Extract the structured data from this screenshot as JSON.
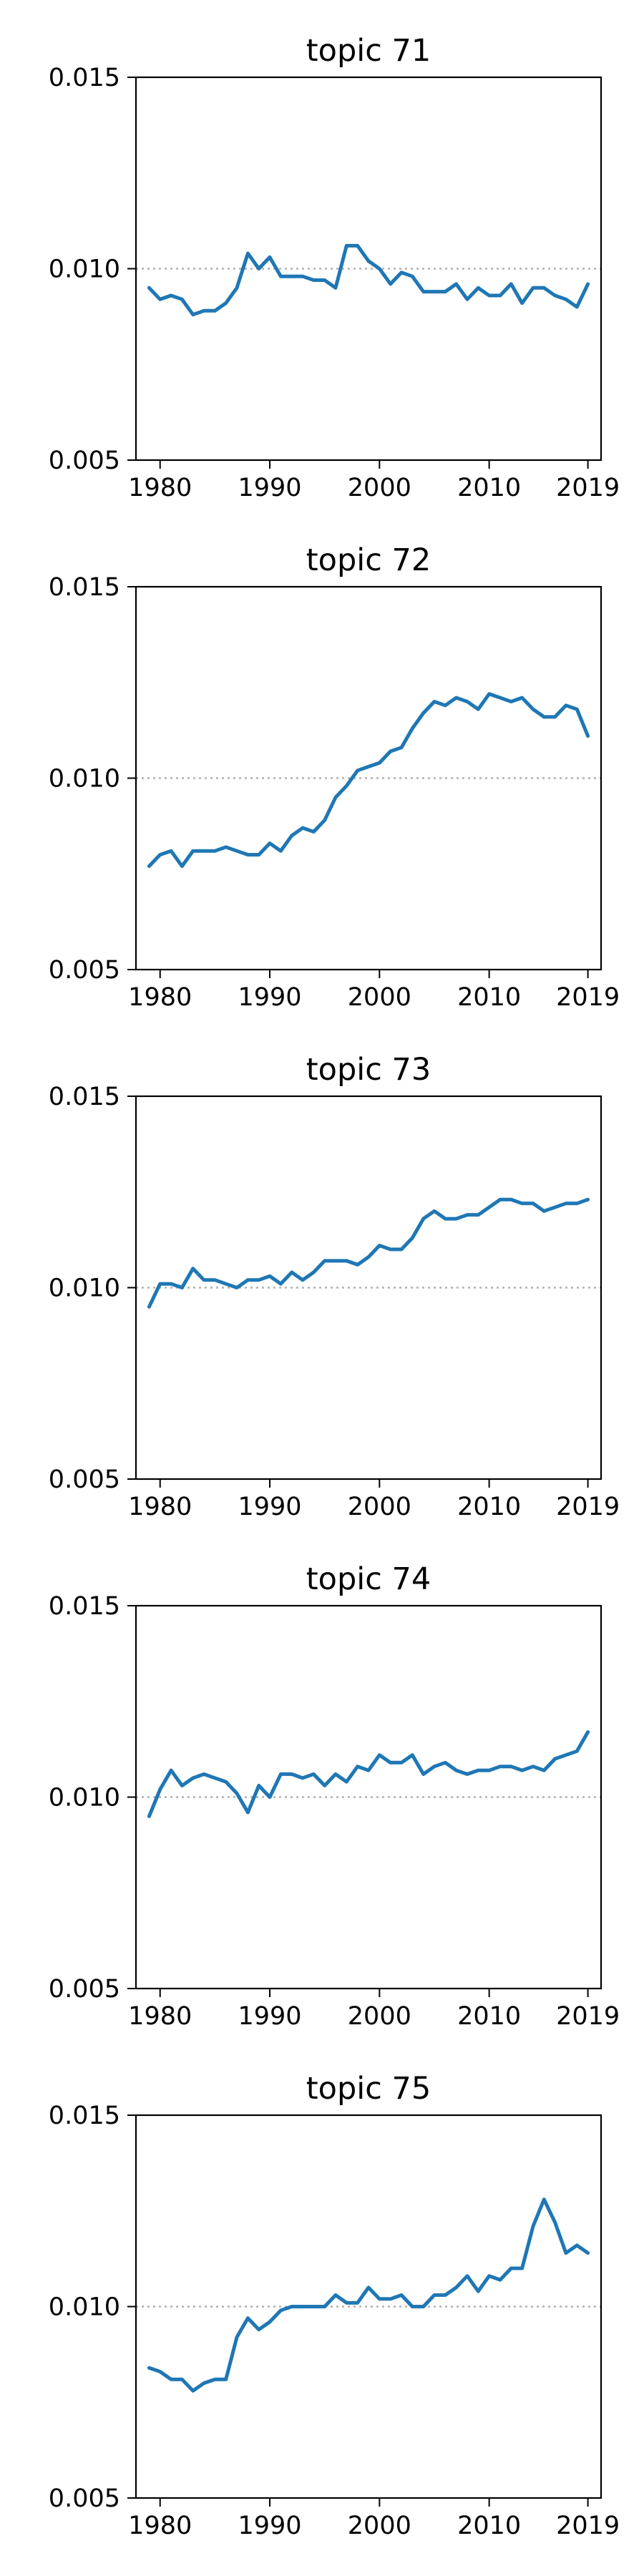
{
  "colors": {
    "line": "#1f77b4",
    "ref_line": "#b0b0b0",
    "axis": "#000000"
  },
  "chart_data": [
    {
      "type": "line",
      "title": "topic 71",
      "xlabel": "",
      "ylabel": "",
      "xlim": [
        1977.8,
        1820.2
      ],
      "ylim": [
        0.005,
        0.015
      ],
      "xticks": [
        1980,
        1990,
        2000,
        2010,
        2019
      ],
      "xtick_labels": [
        "1980",
        "1990",
        "2000",
        "2010",
        "2019"
      ],
      "yticks": [
        0.005,
        0.01,
        0.015
      ],
      "ytick_labels": [
        "0.005",
        "0.010",
        "0.015"
      ],
      "reference_line": 0.01,
      "grid": false,
      "series": [
        {
          "x": [
            1979,
            1980,
            1981,
            1982,
            1983,
            1984,
            1985,
            1986,
            1987,
            1988,
            1989,
            1990,
            1991,
            1992,
            1993,
            1994,
            1995,
            1996,
            1997,
            1998,
            1999,
            2000,
            2001,
            2002,
            2003,
            2004,
            2005,
            2006,
            2007,
            2008,
            2009,
            2010,
            2011,
            2012,
            2013,
            2014,
            2015,
            2016,
            2017,
            2018,
            2019
          ],
          "values": [
            0.0095,
            0.0092,
            0.0093,
            0.0092,
            0.0088,
            0.0089,
            0.0089,
            0.0091,
            0.0095,
            0.0104,
            0.01,
            0.0103,
            0.0098,
            0.0098,
            0.0098,
            0.0097,
            0.0097,
            0.0095,
            0.0106,
            0.0106,
            0.0102,
            0.01,
            0.0096,
            0.0099,
            0.0098,
            0.0094,
            0.0094,
            0.0094,
            0.0096,
            0.0092,
            0.0095,
            0.0093,
            0.0093,
            0.0096,
            0.0091,
            0.0095,
            0.0095,
            0.0093,
            0.0092,
            0.009,
            0.0096
          ]
        }
      ]
    },
    {
      "type": "line",
      "title": "topic 72",
      "xlabel": "",
      "ylabel": "",
      "xlim": [
        1977.8,
        2020.2
      ],
      "ylim": [
        0.005,
        0.015
      ],
      "xticks": [
        1980,
        1990,
        2000,
        2010,
        2019
      ],
      "xtick_labels": [
        "1980",
        "1990",
        "2000",
        "2010",
        "2019"
      ],
      "yticks": [
        0.005,
        0.01,
        0.015
      ],
      "ytick_labels": [
        "0.005",
        "0.010",
        "0.015"
      ],
      "reference_line": 0.01,
      "grid": false,
      "series": [
        {
          "x": [
            1979,
            1980,
            1981,
            1982,
            1983,
            1984,
            1985,
            1986,
            1987,
            1988,
            1989,
            1990,
            1991,
            1992,
            1993,
            1994,
            1995,
            1996,
            1997,
            1998,
            1999,
            2000,
            2001,
            2002,
            2003,
            2004,
            2005,
            2006,
            2007,
            2008,
            2009,
            2010,
            2011,
            2012,
            2013,
            2014,
            2015,
            2016,
            2017,
            2018,
            2019
          ],
          "values": [
            0.0077,
            0.008,
            0.0081,
            0.0077,
            0.0081,
            0.0081,
            0.0081,
            0.0082,
            0.0081,
            0.008,
            0.008,
            0.0083,
            0.0081,
            0.0085,
            0.0087,
            0.0086,
            0.0089,
            0.0095,
            0.0098,
            0.0102,
            0.0103,
            0.0104,
            0.0107,
            0.0108,
            0.0113,
            0.0117,
            0.012,
            0.0119,
            0.0121,
            0.012,
            0.0118,
            0.0122,
            0.0121,
            0.012,
            0.0121,
            0.0118,
            0.0116,
            0.0116,
            0.0119,
            0.0118,
            0.0111
          ]
        }
      ]
    },
    {
      "type": "line",
      "title": "topic 73",
      "xlabel": "",
      "ylabel": "",
      "xlim": [
        1977.8,
        2020.2
      ],
      "ylim": [
        0.005,
        0.015
      ],
      "xticks": [
        1980,
        1990,
        2000,
        2010,
        2019
      ],
      "xtick_labels": [
        "1980",
        "1990",
        "2000",
        "2010",
        "2019"
      ],
      "yticks": [
        0.005,
        0.01,
        0.015
      ],
      "ytick_labels": [
        "0.005",
        "0.010",
        "0.015"
      ],
      "reference_line": 0.01,
      "grid": false,
      "series": [
        {
          "x": [
            1979,
            1980,
            1981,
            1982,
            1983,
            1984,
            1985,
            1986,
            1987,
            1988,
            1989,
            1990,
            1991,
            1992,
            1993,
            1994,
            1995,
            1996,
            1997,
            1998,
            1999,
            2000,
            2001,
            2002,
            2003,
            2004,
            2005,
            2006,
            2007,
            2008,
            2009,
            2010,
            2011,
            2012,
            2013,
            2014,
            2015,
            2016,
            2017,
            2018,
            2019
          ],
          "values": [
            0.0095,
            0.0101,
            0.0101,
            0.01,
            0.0105,
            0.0102,
            0.0102,
            0.0101,
            0.01,
            0.0102,
            0.0102,
            0.0103,
            0.0101,
            0.0104,
            0.0102,
            0.0104,
            0.0107,
            0.0107,
            0.0107,
            0.0106,
            0.0108,
            0.0111,
            0.011,
            0.011,
            0.0113,
            0.0118,
            0.012,
            0.0118,
            0.0118,
            0.0119,
            0.0119,
            0.0121,
            0.0123,
            0.0123,
            0.0122,
            0.0122,
            0.012,
            0.0121,
            0.0122,
            0.0122,
            0.0123
          ]
        }
      ]
    },
    {
      "type": "line",
      "title": "topic 74",
      "xlabel": "",
      "ylabel": "",
      "xlim": [
        1977.8,
        2020.2
      ],
      "ylim": [
        0.005,
        0.015
      ],
      "xticks": [
        1980,
        1990,
        2000,
        2010,
        2019
      ],
      "xtick_labels": [
        "1980",
        "1990",
        "2000",
        "2010",
        "2019"
      ],
      "yticks": [
        0.005,
        0.01,
        0.015
      ],
      "ytick_labels": [
        "0.005",
        "0.010",
        "0.015"
      ],
      "reference_line": 0.01,
      "grid": false,
      "series": [
        {
          "x": [
            1979,
            1980,
            1981,
            1982,
            1983,
            1984,
            1985,
            1986,
            1987,
            1988,
            1989,
            1990,
            1991,
            1992,
            1993,
            1994,
            1995,
            1996,
            1997,
            1998,
            1999,
            2000,
            2001,
            2002,
            2003,
            2004,
            2005,
            2006,
            2007,
            2008,
            2009,
            2010,
            2011,
            2012,
            2013,
            2014,
            2015,
            2016,
            2017,
            2018,
            2019
          ],
          "values": [
            0.0095,
            0.0102,
            0.0107,
            0.0103,
            0.0105,
            0.0106,
            0.0105,
            0.0104,
            0.0101,
            0.0096,
            0.0103,
            0.01,
            0.0106,
            0.0106,
            0.0105,
            0.0106,
            0.0103,
            0.0106,
            0.0104,
            0.0108,
            0.0107,
            0.0111,
            0.0109,
            0.0109,
            0.0111,
            0.0106,
            0.0108,
            0.0109,
            0.0107,
            0.0106,
            0.0107,
            0.0107,
            0.0108,
            0.0108,
            0.0107,
            0.0108,
            0.0107,
            0.011,
            0.0111,
            0.0112,
            0.0117
          ]
        }
      ]
    },
    {
      "type": "line",
      "title": "topic 75",
      "xlabel": "",
      "ylabel": "",
      "xlim": [
        1977.8,
        2020.2
      ],
      "ylim": [
        0.005,
        0.015
      ],
      "xticks": [
        1980,
        1990,
        2000,
        2010,
        2019
      ],
      "xtick_labels": [
        "1980",
        "1990",
        "2000",
        "2010",
        "2019"
      ],
      "yticks": [
        0.005,
        0.01,
        0.015
      ],
      "ytick_labels": [
        "0.005",
        "0.010",
        "0.015"
      ],
      "reference_line": 0.01,
      "grid": false,
      "series": [
        {
          "x": [
            1979,
            1980,
            1981,
            1982,
            1983,
            1984,
            1985,
            1986,
            1987,
            1988,
            1989,
            1990,
            1991,
            1992,
            1993,
            1994,
            1995,
            1996,
            1997,
            1998,
            1999,
            2000,
            2001,
            2002,
            2003,
            2004,
            2005,
            2006,
            2007,
            2008,
            2009,
            2010,
            2011,
            2012,
            2013,
            2014,
            2015,
            2016,
            2017,
            2018,
            2019
          ],
          "values": [
            0.0084,
            0.0083,
            0.0081,
            0.0081,
            0.0078,
            0.008,
            0.0081,
            0.0081,
            0.0092,
            0.0097,
            0.0094,
            0.0096,
            0.0099,
            0.01,
            0.01,
            0.01,
            0.01,
            0.0103,
            0.0101,
            0.0101,
            0.0105,
            0.0102,
            0.0102,
            0.0103,
            0.01,
            0.01,
            0.0103,
            0.0103,
            0.0105,
            0.0108,
            0.0104,
            0.0108,
            0.0107,
            0.011,
            0.011,
            0.0121,
            0.0128,
            0.0122,
            0.0114,
            0.0116,
            0.0114
          ]
        }
      ]
    }
  ]
}
